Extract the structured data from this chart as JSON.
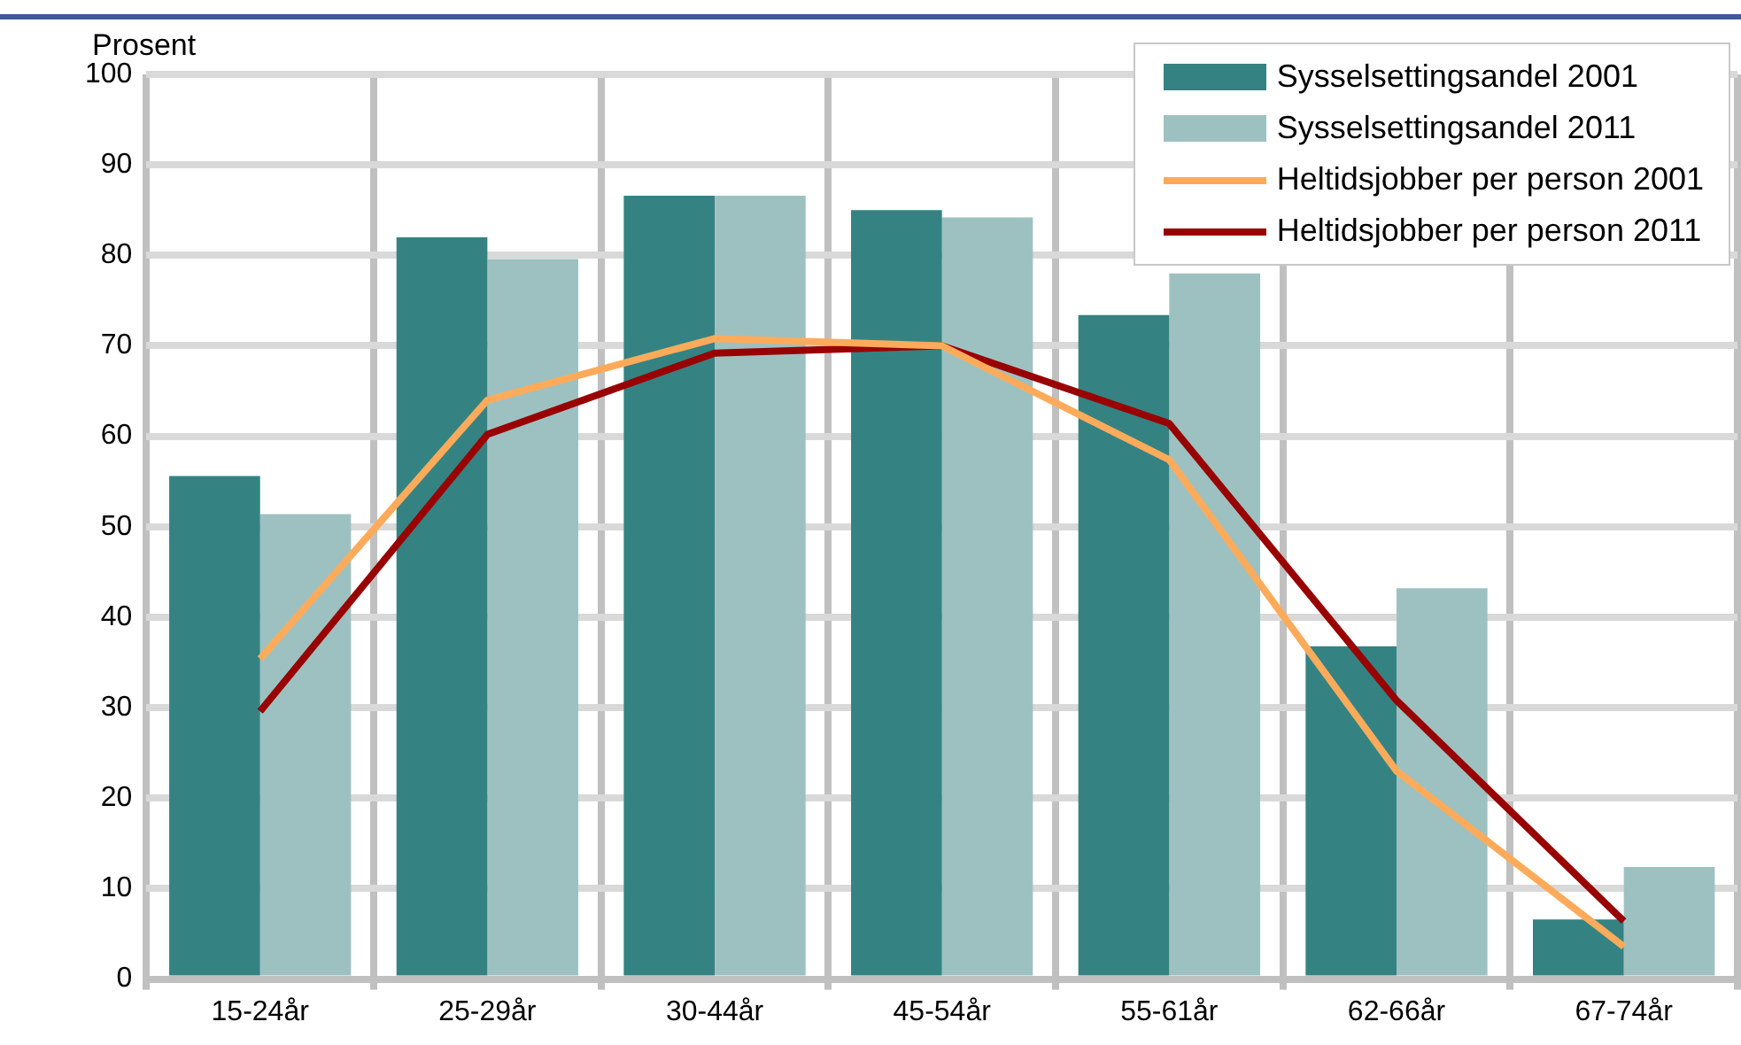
{
  "chart_data": {
    "type": "bar",
    "ylabel": "Prosent",
    "categories": [
      "15-24år",
      "25-29år",
      "30-44år",
      "45-54år",
      "55-61år",
      "62-66år",
      "67-74år"
    ],
    "series": [
      {
        "name": "Sysselsettingsandel 2001",
        "color": "#348382",
        "values": [
          55.6,
          82,
          86.6,
          85,
          73.4,
          36.8,
          6.6
        ]
      },
      {
        "name": "Sysselsettingsandel 2011",
        "color": "#9dc1c1",
        "values": [
          51.4,
          79.6,
          86.6,
          84.2,
          78,
          43.2,
          12.4
        ]
      },
      {
        "name": "Heltidsjobber per person 2001",
        "type": "line",
        "color": "#fdab5b",
        "values": [
          35.4,
          64,
          70.8,
          70,
          57.4,
          23,
          3.6
        ]
      },
      {
        "name": "Heltidsjobber per person 2011",
        "type": "line",
        "color": "#990000",
        "values": [
          29.6,
          60.2,
          69.2,
          70,
          61.4,
          30.8,
          6.4
        ]
      }
    ],
    "ylim": [
      0,
      100
    ],
    "yticks": [
      0,
      10,
      20,
      30,
      40,
      50,
      60,
      70,
      80,
      90,
      100
    ],
    "grid": true,
    "legend": "top right",
    "marker": "none",
    "line_style": "solid"
  }
}
